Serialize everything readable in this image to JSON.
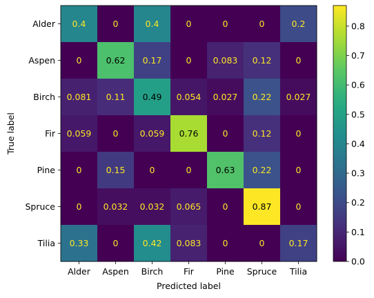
{
  "chart_data": {
    "type": "heatmap",
    "xlabel": "Predicted label",
    "ylabel": "True label",
    "x_categories": [
      "Alder",
      "Aspen",
      "Birch",
      "Fir",
      "Pine",
      "Spruce",
      "Tilia"
    ],
    "y_categories": [
      "Alder",
      "Aspen",
      "Birch",
      "Fir",
      "Pine",
      "Spruce",
      "Tilia"
    ],
    "values": [
      [
        0.4,
        0,
        0.4,
        0,
        0,
        0,
        0.2
      ],
      [
        0,
        0.62,
        0.17,
        0,
        0.083,
        0.12,
        0
      ],
      [
        0.081,
        0.11,
        0.49,
        0.054,
        0.027,
        0.22,
        0.027
      ],
      [
        0.059,
        0,
        0.059,
        0.76,
        0,
        0.12,
        0
      ],
      [
        0,
        0.15,
        0,
        0,
        0.63,
        0.22,
        0
      ],
      [
        0,
        0.032,
        0.032,
        0.065,
        0,
        0.87,
        0
      ],
      [
        0.33,
        0,
        0.42,
        0.083,
        0,
        0,
        0.17
      ]
    ],
    "colorscale": "viridis",
    "colorbar": {
      "min": 0.0,
      "max": 0.87,
      "ticks": [
        0.0,
        0.1,
        0.2,
        0.3,
        0.4,
        0.5,
        0.6,
        0.7,
        0.8
      ],
      "tick_labels": [
        "0.0",
        "0.1",
        "0.2",
        "0.3",
        "0.4",
        "0.5",
        "0.6",
        "0.7",
        "0.8"
      ]
    },
    "text_colors": {
      "on_dark": "#fde725",
      "on_light": "#000000"
    }
  }
}
